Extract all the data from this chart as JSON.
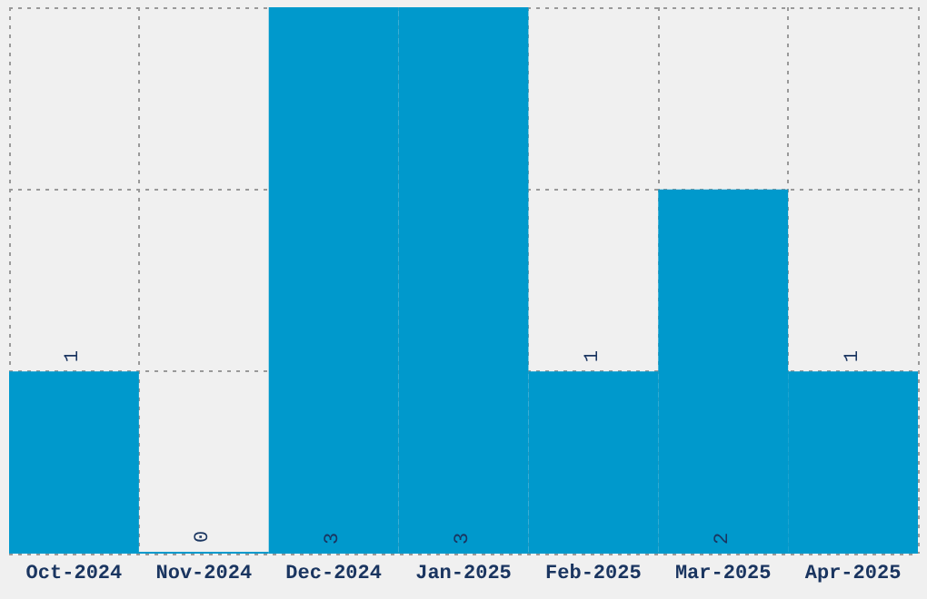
{
  "chart_data": {
    "type": "bar",
    "categories": [
      "Oct-2024",
      "Nov-2024",
      "Dec-2024",
      "Jan-2025",
      "Feb-2025",
      "Mar-2025",
      "Apr-2025"
    ],
    "values": [
      1,
      0,
      3,
      3,
      1,
      2,
      1
    ],
    "color": "#0099cc",
    "data_labels": true,
    "grid": true
  }
}
